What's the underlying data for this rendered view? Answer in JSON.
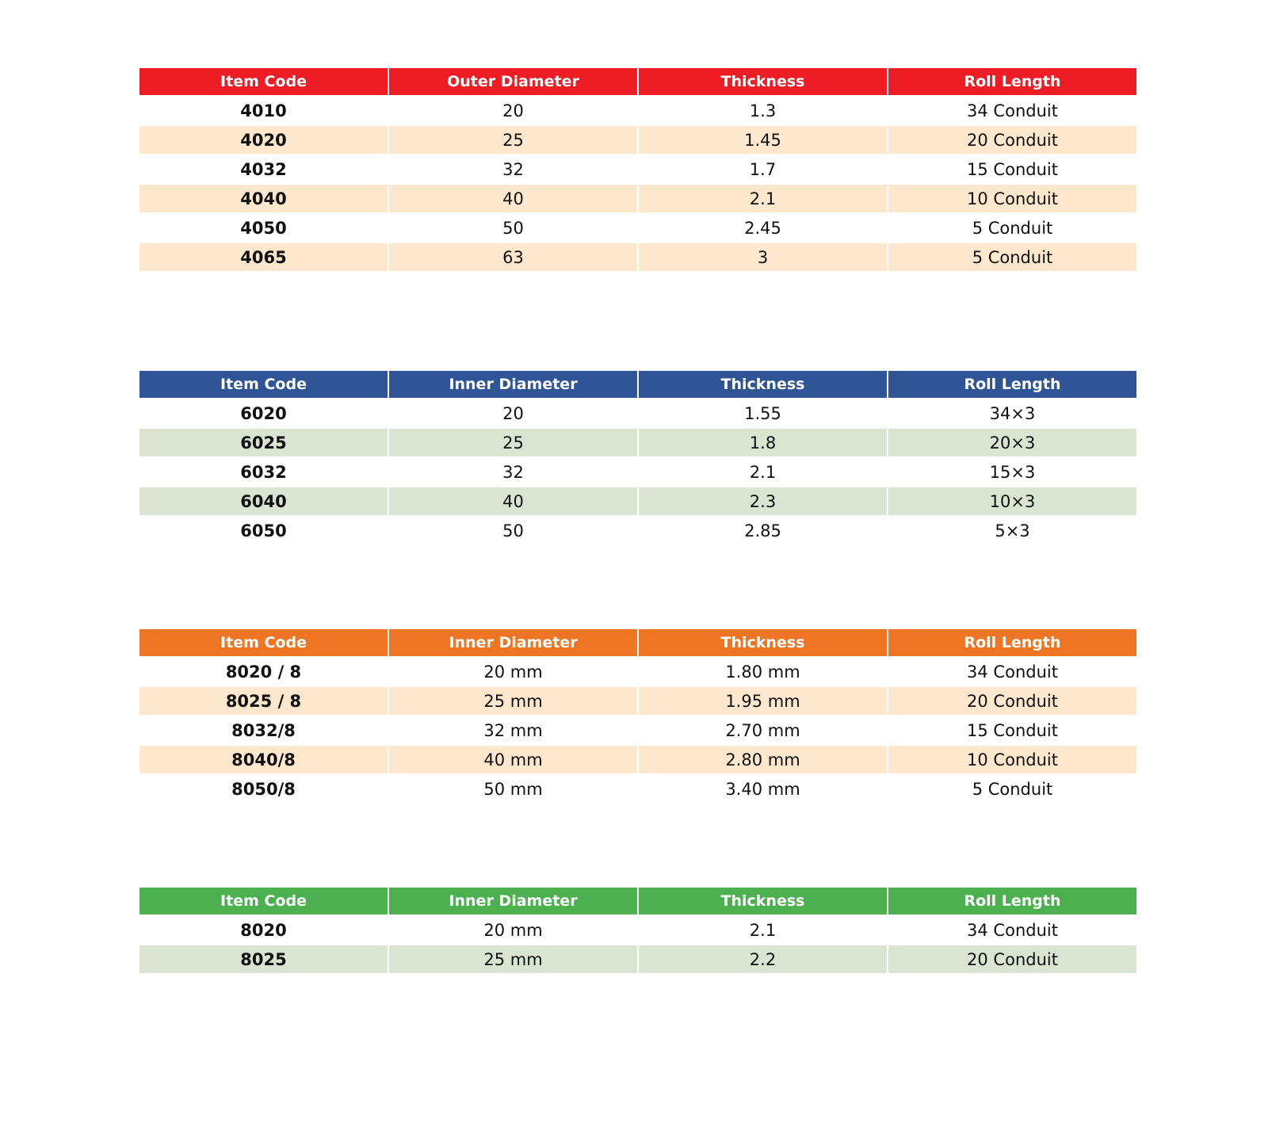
{
  "tables": [
    {
      "header_color": "#ee1c25",
      "stripe_color": "#fde7cd",
      "headers": [
        "Item Code",
        "Outer Diameter",
        "Thickness",
        "Roll Length"
      ],
      "rows": [
        [
          "4010",
          "20",
          "1.3",
          "34 Conduit"
        ],
        [
          "4020",
          "25",
          "1.45",
          "20 Conduit"
        ],
        [
          "4032",
          "32",
          "1.7",
          "15 Conduit"
        ],
        [
          "4040",
          "40",
          "2.1",
          "10 Conduit"
        ],
        [
          "4050",
          "50",
          "2.45",
          "5 Conduit"
        ],
        [
          "4065",
          "63",
          "3",
          "5 Conduit"
        ]
      ]
    },
    {
      "header_color": "#2f5597",
      "stripe_color": "#d9e4d1",
      "headers": [
        "Item Code",
        "Inner Diameter",
        "Thickness",
        "Roll Length"
      ],
      "rows": [
        [
          "6020",
          "20",
          "1.55",
          "34×3"
        ],
        [
          "6025",
          "25",
          "1.8",
          "20×3"
        ],
        [
          "6032",
          "32",
          "2.1",
          "15×3"
        ],
        [
          "6040",
          "40",
          "2.3",
          "10×3"
        ],
        [
          "6050",
          "50",
          "2.85",
          "5×3"
        ]
      ]
    },
    {
      "header_color": "#ed7523",
      "stripe_color": "#fde7cd",
      "headers": [
        "Item Code",
        "Inner Diameter",
        "Thickness",
        "Roll Length"
      ],
      "rows": [
        [
          "8020 / 8",
          "20 mm",
          "1.80 mm",
          "34 Conduit"
        ],
        [
          "8025 / 8",
          "25 mm",
          "1.95 mm",
          "20 Conduit"
        ],
        [
          "8032/8",
          "32 mm",
          "2.70 mm",
          "15 Conduit"
        ],
        [
          "8040/8",
          "40 mm",
          "2.80 mm",
          "10 Conduit"
        ],
        [
          "8050/8",
          "50 mm",
          "3.40 mm",
          "5 Conduit"
        ]
      ]
    },
    {
      "header_color": "#4caf50",
      "stripe_color": "#d9e4d1",
      "headers": [
        "Item Code",
        "Inner Diameter",
        "Thickness",
        "Roll Length"
      ],
      "rows": [
        [
          "8020",
          "20 mm",
          "2.1",
          "34 Conduit"
        ],
        [
          "8025",
          "25 mm",
          "2.2",
          "20 Conduit"
        ]
      ]
    }
  ]
}
